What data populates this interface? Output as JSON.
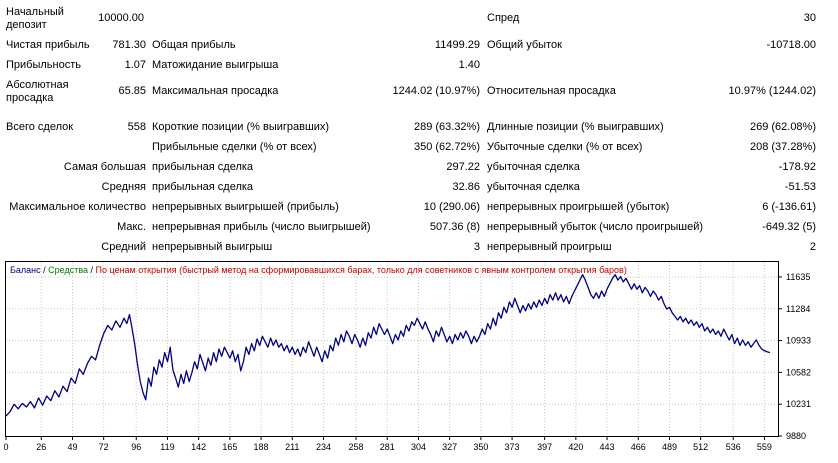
{
  "report": {
    "labels": {
      "initial_deposit": "Начальный депозит",
      "net_profit": "Чистая прибыль",
      "gross_profit": "Общая прибыль",
      "gross_loss": "Общий убыток",
      "profit_factor": "Прибыльность",
      "expected_payoff": "Матожидание выигрыша",
      "abs_drawdown": "Абсолютная просадка",
      "max_drawdown": "Максимальная просадка",
      "rel_drawdown": "Относительная просадка",
      "spread": "Спред",
      "total_trades": "Всего сделок",
      "short_positions": "Короткие позиции (% выигравших)",
      "long_positions": "Длинные позиции (% выигравших)",
      "profit_trades": "Прибыльные сделки (% от всех)",
      "loss_trades": "Убыточные сделки (% от всех)",
      "largest": "Самая большая",
      "largest_profit": "прибыльная сделка",
      "largest_loss": "убыточная сделка",
      "average": "Средняя",
      "average_profit": "прибыльная сделка",
      "average_loss": "убыточная сделка",
      "max_consecutive": "Максимальное количество",
      "max_cons_wins": "непрерывных выигрышей (прибыль)",
      "max_cons_losses": "непрерывных проигрышей (убыток)",
      "maximal": "Макс.",
      "max_cons_profit": "непрерывная прибыль (число выигрышей)",
      "max_cons_loss": "непрерывный убыток (число проигрышей)",
      "avg_consecutive": "Средний",
      "avg_cons_wins": "непрерывный выигрыш",
      "avg_cons_losses": "непрерывный проигрыш"
    },
    "values": {
      "initial_deposit": "10000.00",
      "spread": "30",
      "net_profit": "781.30",
      "gross_profit": "11499.29",
      "gross_loss": "-10718.00",
      "profit_factor": "1.07",
      "expected_payoff": "1.40",
      "abs_drawdown": "65.85",
      "max_drawdown": "1244.02 (10.97%)",
      "rel_drawdown": "10.97% (1244.02)",
      "total_trades": "558",
      "short_positions": "289 (63.32%)",
      "long_positions": "269 (62.08%)",
      "profit_trades": "350 (62.72%)",
      "loss_trades": "208 (37.28%)",
      "largest_profit": "297.22",
      "largest_loss": "-178.92",
      "average_profit": "32.86",
      "average_loss": "-51.53",
      "max_cons_wins": "10 (290.06)",
      "max_cons_losses": "6 (-136.61)",
      "max_cons_profit": "507.36 (8)",
      "max_cons_loss": "-649.32 (5)",
      "avg_cons_wins": "3",
      "avg_cons_losses": "2"
    }
  },
  "chart_legend": {
    "balance": "Баланс",
    "sep1": " / ",
    "equity": "Средства",
    "sep2": " / ",
    "model": "По ценам открытия (быстрый метод на сформировавшихся барах, только для советников с явным контролем открытия баров)"
  },
  "colors": {
    "balance": "#000080",
    "equity": "#008000",
    "model": "#cc0000",
    "grid": "#c8c8c8",
    "frame": "#000000"
  },
  "chart_data": {
    "type": "line",
    "title": "",
    "xlabel": "",
    "ylabel": "",
    "xlim": [
      0,
      569
    ],
    "ylim": [
      9880,
      11800
    ],
    "x_ticks": [
      0,
      26,
      49,
      72,
      96,
      119,
      142,
      165,
      188,
      211,
      234,
      258,
      281,
      304,
      327,
      350,
      373,
      397,
      420,
      443,
      466,
      489,
      512,
      536,
      559
    ],
    "y_ticks": [
      9880,
      10231,
      10582,
      10933,
      11284,
      11635
    ],
    "grid": true,
    "series": [
      {
        "name": "Баланс",
        "points": [
          [
            0,
            10100
          ],
          [
            3,
            10150
          ],
          [
            6,
            10230
          ],
          [
            9,
            10180
          ],
          [
            12,
            10240
          ],
          [
            15,
            10200
          ],
          [
            18,
            10260
          ],
          [
            21,
            10190
          ],
          [
            24,
            10300
          ],
          [
            27,
            10220
          ],
          [
            30,
            10320
          ],
          [
            33,
            10270
          ],
          [
            36,
            10380
          ],
          [
            39,
            10310
          ],
          [
            42,
            10430
          ],
          [
            45,
            10370
          ],
          [
            48,
            10520
          ],
          [
            51,
            10460
          ],
          [
            54,
            10620
          ],
          [
            57,
            10560
          ],
          [
            60,
            10680
          ],
          [
            63,
            10760
          ],
          [
            66,
            10720
          ],
          [
            69,
            10880
          ],
          [
            72,
            11010
          ],
          [
            75,
            11100
          ],
          [
            78,
            11050
          ],
          [
            81,
            11150
          ],
          [
            84,
            11080
          ],
          [
            87,
            11180
          ],
          [
            89,
            11120
          ],
          [
            91,
            11220
          ],
          [
            93,
            11060
          ],
          [
            95,
            10880
          ],
          [
            97,
            10660
          ],
          [
            99,
            10480
          ],
          [
            101,
            10360
          ],
          [
            103,
            10280
          ],
          [
            105,
            10520
          ],
          [
            107,
            10430
          ],
          [
            109,
            10640
          ],
          [
            111,
            10560
          ],
          [
            113,
            10720
          ],
          [
            115,
            10640
          ],
          [
            117,
            10800
          ],
          [
            119,
            10700
          ],
          [
            121,
            10860
          ],
          [
            123,
            10610
          ],
          [
            125,
            10520
          ],
          [
            127,
            10420
          ],
          [
            129,
            10560
          ],
          [
            131,
            10460
          ],
          [
            133,
            10600
          ],
          [
            135,
            10480
          ],
          [
            137,
            10580
          ],
          [
            139,
            10700
          ],
          [
            141,
            10620
          ],
          [
            143,
            10780
          ],
          [
            145,
            10690
          ],
          [
            147,
            10600
          ],
          [
            149,
            10740
          ],
          [
            151,
            10660
          ],
          [
            153,
            10800
          ],
          [
            155,
            10700
          ],
          [
            157,
            10840
          ],
          [
            159,
            10760
          ],
          [
            161,
            10860
          ],
          [
            163,
            10800
          ],
          [
            165,
            10740
          ],
          [
            167,
            10820
          ],
          [
            169,
            10700
          ],
          [
            171,
            10780
          ],
          [
            173,
            10600
          ],
          [
            175,
            10700
          ],
          [
            177,
            10860
          ],
          [
            179,
            10780
          ],
          [
            181,
            10900
          ],
          [
            183,
            10820
          ],
          [
            185,
            10950
          ],
          [
            187,
            10880
          ],
          [
            189,
            10980
          ],
          [
            191,
            10920
          ],
          [
            193,
            10860
          ],
          [
            195,
            10960
          ],
          [
            197,
            10880
          ],
          [
            199,
            10940
          ],
          [
            201,
            10860
          ],
          [
            203,
            10900
          ],
          [
            205,
            10820
          ],
          [
            207,
            10880
          ],
          [
            209,
            10800
          ],
          [
            211,
            10860
          ],
          [
            213,
            10780
          ],
          [
            215,
            10840
          ],
          [
            217,
            10760
          ],
          [
            219,
            10860
          ],
          [
            221,
            10800
          ],
          [
            223,
            10920
          ],
          [
            225,
            10840
          ],
          [
            227,
            10760
          ],
          [
            229,
            10860
          ],
          [
            231,
            10780
          ],
          [
            233,
            10700
          ],
          [
            235,
            10820
          ],
          [
            237,
            10740
          ],
          [
            239,
            10880
          ],
          [
            241,
            10820
          ],
          [
            243,
            10960
          ],
          [
            245,
            10880
          ],
          [
            247,
            11000
          ],
          [
            249,
            10920
          ],
          [
            251,
            11040
          ],
          [
            253,
            10980
          ],
          [
            255,
            10900
          ],
          [
            257,
            11000
          ],
          [
            259,
            10940
          ],
          [
            261,
            10860
          ],
          [
            263,
            10960
          ],
          [
            265,
            10880
          ],
          [
            267,
            11020
          ],
          [
            269,
            10960
          ],
          [
            271,
            11080
          ],
          [
            273,
            11000
          ],
          [
            275,
            11120
          ],
          [
            277,
            11060
          ],
          [
            279,
            11000
          ],
          [
            281,
            11060
          ],
          [
            283,
            10980
          ],
          [
            285,
            10900
          ],
          [
            287,
            11000
          ],
          [
            289,
            10940
          ],
          [
            291,
            11040
          ],
          [
            293,
            10980
          ],
          [
            295,
            11100
          ],
          [
            297,
            11040
          ],
          [
            299,
            11140
          ],
          [
            301,
            11100
          ],
          [
            303,
            11180
          ],
          [
            305,
            11120
          ],
          [
            307,
            11060
          ],
          [
            309,
            11140
          ],
          [
            311,
            11060
          ],
          [
            313,
            11000
          ],
          [
            315,
            10920
          ],
          [
            317,
            11040
          ],
          [
            319,
            10980
          ],
          [
            321,
            11080
          ],
          [
            323,
            11000
          ],
          [
            325,
            10920
          ],
          [
            327,
            10980
          ],
          [
            329,
            10900
          ],
          [
            331,
            11000
          ],
          [
            333,
            10940
          ],
          [
            335,
            11020
          ],
          [
            337,
            10960
          ],
          [
            339,
            11040
          ],
          [
            341,
            10980
          ],
          [
            343,
            10900
          ],
          [
            345,
            10980
          ],
          [
            347,
            10920
          ],
          [
            349,
            10980
          ],
          [
            351,
            11060
          ],
          [
            353,
            11000
          ],
          [
            355,
            11120
          ],
          [
            357,
            11060
          ],
          [
            359,
            11180
          ],
          [
            361,
            11100
          ],
          [
            363,
            11240
          ],
          [
            365,
            11180
          ],
          [
            367,
            11300
          ],
          [
            369,
            11240
          ],
          [
            371,
            11360
          ],
          [
            373,
            11300
          ],
          [
            375,
            11400
          ],
          [
            377,
            11320
          ],
          [
            379,
            11240
          ],
          [
            381,
            11320
          ],
          [
            383,
            11260
          ],
          [
            385,
            11340
          ],
          [
            387,
            11280
          ],
          [
            389,
            11360
          ],
          [
            391,
            11300
          ],
          [
            393,
            11380
          ],
          [
            395,
            11320
          ],
          [
            397,
            11400
          ],
          [
            399,
            11340
          ],
          [
            401,
            11440
          ],
          [
            403,
            11380
          ],
          [
            405,
            11460
          ],
          [
            407,
            11380
          ],
          [
            409,
            11440
          ],
          [
            411,
            11360
          ],
          [
            413,
            11420
          ],
          [
            415,
            11340
          ],
          [
            417,
            11420
          ],
          [
            419,
            11480
          ],
          [
            421,
            11540
          ],
          [
            423,
            11600
          ],
          [
            425,
            11660
          ],
          [
            427,
            11600
          ],
          [
            429,
            11520
          ],
          [
            431,
            11440
          ],
          [
            433,
            11400
          ],
          [
            435,
            11460
          ],
          [
            437,
            11400
          ],
          [
            439,
            11480
          ],
          [
            441,
            11420
          ],
          [
            443,
            11500
          ],
          [
            445,
            11560
          ],
          [
            447,
            11620
          ],
          [
            449,
            11660
          ],
          [
            451,
            11600
          ],
          [
            453,
            11640
          ],
          [
            455,
            11580
          ],
          [
            457,
            11620
          ],
          [
            459,
            11560
          ],
          [
            461,
            11500
          ],
          [
            463,
            11560
          ],
          [
            465,
            11500
          ],
          [
            467,
            11540
          ],
          [
            469,
            11460
          ],
          [
            471,
            11520
          ],
          [
            473,
            11480
          ],
          [
            475,
            11420
          ],
          [
            477,
            11480
          ],
          [
            479,
            11440
          ],
          [
            481,
            11380
          ],
          [
            483,
            11420
          ],
          [
            485,
            11340
          ],
          [
            487,
            11280
          ],
          [
            489,
            11300
          ],
          [
            491,
            11240
          ],
          [
            493,
            11200
          ],
          [
            495,
            11160
          ],
          [
            497,
            11200
          ],
          [
            499,
            11140
          ],
          [
            501,
            11180
          ],
          [
            503,
            11120
          ],
          [
            505,
            11160
          ],
          [
            507,
            11100
          ],
          [
            509,
            11140
          ],
          [
            511,
            11080
          ],
          [
            513,
            11120
          ],
          [
            515,
            11040
          ],
          [
            517,
            11080
          ],
          [
            519,
            11020
          ],
          [
            521,
            11060
          ],
          [
            523,
            11000
          ],
          [
            525,
            11040
          ],
          [
            527,
            10980
          ],
          [
            529,
            11060
          ],
          [
            531,
            11000
          ],
          [
            533,
            10940
          ],
          [
            535,
            11000
          ],
          [
            537,
            10900
          ],
          [
            539,
            10960
          ],
          [
            541,
            10880
          ],
          [
            543,
            10940
          ],
          [
            545,
            10880
          ],
          [
            547,
            10920
          ],
          [
            549,
            10860
          ],
          [
            551,
            10900
          ],
          [
            553,
            10940
          ],
          [
            555,
            10880
          ],
          [
            557,
            10840
          ],
          [
            559,
            10820
          ],
          [
            561,
            10810
          ],
          [
            563,
            10800
          ]
        ]
      }
    ]
  }
}
